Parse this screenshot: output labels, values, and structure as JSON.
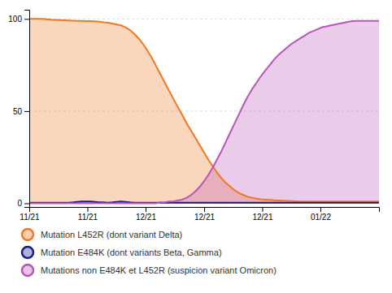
{
  "chart_data": {
    "type": "area",
    "x": [
      0,
      1,
      2,
      3,
      4,
      5,
      6,
      7,
      8,
      9,
      10,
      11,
      12,
      13,
      14,
      15,
      16,
      17,
      18,
      19,
      20,
      21,
      22,
      23,
      24,
      25,
      26,
      27,
      28,
      29,
      30,
      31,
      32,
      33,
      34,
      35,
      36,
      37,
      38,
      39,
      40,
      41,
      42,
      43,
      44,
      45,
      46,
      47,
      48,
      49,
      50,
      51,
      52,
      53,
      54,
      55,
      56,
      57,
      58,
      59,
      60,
      61,
      62,
      63,
      64,
      65,
      66,
      67,
      68,
      69,
      70,
      71,
      72,
      73,
      74,
      75,
      76,
      77,
      78,
      79,
      80
    ],
    "series": [
      {
        "name": "Mutation L452R (dont variant Delta)",
        "color": "#f07820",
        "values": [
          100,
          100,
          100,
          100,
          99.8,
          99.6,
          99.5,
          99.4,
          99.3,
          99.2,
          99.1,
          99.0,
          98.9,
          98.8,
          98.8,
          98.7,
          98.5,
          98.2,
          98.0,
          97.5,
          97.0,
          96.5,
          95.5,
          94.0,
          92.0,
          89.5,
          86.5,
          83.0,
          79.0,
          74.5,
          70.0,
          65.5,
          61.0,
          56.5,
          52.0,
          48.0,
          43.5,
          39.5,
          35.5,
          31.5,
          27.5,
          23.5,
          20.0,
          16.5,
          13.5,
          11.0,
          9.0,
          7.0,
          5.5,
          4.5,
          3.5,
          3.0,
          2.5,
          2.2,
          2.0,
          1.8,
          1.6,
          1.5,
          1.4,
          1.3,
          1.2,
          1.1,
          1.0,
          1.0,
          1.0,
          1.0,
          1.0,
          1.0,
          1.0,
          1.0,
          1.0,
          1.0,
          1.0,
          1.0,
          1.0,
          1.0,
          1.0,
          1.0,
          1.0,
          1.0,
          1.0
        ]
      },
      {
        "name": "Mutation E484K (dont variants Beta, Gamma)",
        "color": "#1a1a8c",
        "values": [
          0.3,
          0.3,
          0.3,
          0.3,
          0.3,
          0.3,
          0.3,
          0.3,
          0.3,
          0.3,
          0.5,
          0.8,
          1.0,
          1.0,
          1.0,
          0.8,
          0.5,
          0.5,
          0.3,
          0.5,
          0.8,
          1.0,
          0.8,
          0.5,
          0.3,
          0.3,
          0.3,
          0.3,
          0.3,
          0.3,
          0.3,
          0.3,
          0.3,
          0.3,
          0.3,
          0.3,
          0.3,
          0.3,
          0.3,
          0.3,
          0.3,
          0.3,
          0.3,
          0.3,
          0.3,
          0.3,
          0.3,
          0.3,
          0.3,
          0.3,
          0.3,
          0.3,
          0.3,
          0.3,
          0.3,
          0.3,
          0.3,
          0.3,
          0.3,
          0.3,
          0.3,
          0.3,
          0.3,
          0.3,
          0.3,
          0.3,
          0.3,
          0.3,
          0.3,
          0.3,
          0.3,
          0.3,
          0.3,
          0.3,
          0.3,
          0.3,
          0.3,
          0.3,
          0.3,
          0.3,
          0.3
        ]
      },
      {
        "name": "Mutations non E484K et L452R (suspicion variant Omicron)",
        "color": "#b855b8",
        "values": [
          0,
          0,
          0,
          0,
          0,
          0,
          0,
          0,
          0,
          0,
          0,
          0,
          0,
          0,
          0,
          0,
          0,
          0,
          0,
          0,
          0,
          0,
          0,
          0,
          0,
          0,
          0,
          0,
          0,
          0,
          0.5,
          0.5,
          1.0,
          1.0,
          1.5,
          2.0,
          3.0,
          4.5,
          6.5,
          9.0,
          12.0,
          15.5,
          19.5,
          24.0,
          28.5,
          33.5,
          38.5,
          43.5,
          48.5,
          53.5,
          58.0,
          62.0,
          65.5,
          69.0,
          72.0,
          75.0,
          78.0,
          80.5,
          82.5,
          84.5,
          86.5,
          88.0,
          89.5,
          91.0,
          92.5,
          93.5,
          94.5,
          95.5,
          96.0,
          96.5,
          97.0,
          97.5,
          98.0,
          98.5,
          98.8,
          99.0,
          99.0,
          99.0,
          99.0,
          99.0,
          99.0
        ]
      }
    ],
    "xlim": [
      0,
      80
    ],
    "xticks": [
      {
        "value": 0,
        "label": "11/21"
      },
      {
        "value": 13.3,
        "label": "11/21"
      },
      {
        "value": 26.6,
        "label": "12/21"
      },
      {
        "value": 40.0,
        "label": "12/21"
      },
      {
        "value": 53.3,
        "label": "12/21"
      },
      {
        "value": 66.6,
        "label": "01/22"
      }
    ],
    "ylim": [
      -2,
      105
    ],
    "yticks": [
      0,
      50,
      100
    ],
    "grid": true,
    "legend": "bottom"
  }
}
